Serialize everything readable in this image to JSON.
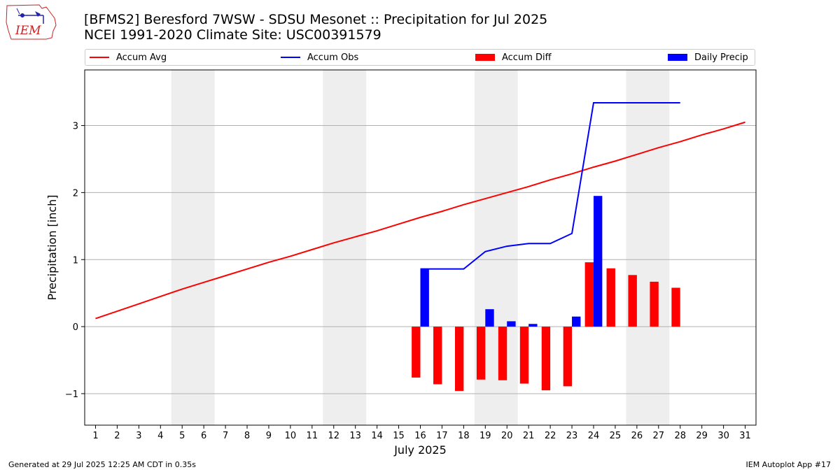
{
  "header": {
    "title": "[BFMS2] Beresford 7WSW - SDSU Mesonet :: Precipitation for Jul 2025",
    "subtitle": "NCEI 1991-2020 Climate Site: USC00391579",
    "logo_text": "IEM"
  },
  "legend": {
    "accum_avg": "Accum Avg",
    "accum_obs": "Accum Obs",
    "accum_diff": "Accum Diff",
    "daily_precip": "Daily Precip"
  },
  "footer": {
    "left": "Generated at 29 Jul 2025 12:25 AM CDT in 0.35s",
    "right": "IEM Autoplot App #17"
  },
  "colors": {
    "accum_avg": "#ff0000",
    "accum_obs": "#0000ff",
    "accum_diff": "#ff0000",
    "daily_precip": "#0000ff",
    "weekend_band": "#eeeeee",
    "grid": "#b0b0b0"
  },
  "chart_data": {
    "type": "bar",
    "xlabel": "July 2025",
    "ylabel": "Precipitation [inch]",
    "xlim": [
      0.5,
      31.5
    ],
    "ylim": [
      -1.47,
      3.83
    ],
    "yticks": [
      -1,
      0,
      1,
      2,
      3
    ],
    "ytick_labels": [
      "−1",
      "0",
      "1",
      "2",
      "3"
    ],
    "grid": "horizontal",
    "legend_position": "top",
    "days": [
      1,
      2,
      3,
      4,
      5,
      6,
      7,
      8,
      9,
      10,
      11,
      12,
      13,
      14,
      15,
      16,
      17,
      18,
      19,
      20,
      21,
      22,
      23,
      24,
      25,
      26,
      27,
      28,
      29,
      30,
      31
    ],
    "weekend_days": [
      5,
      6,
      12,
      13,
      19,
      20,
      26,
      27
    ],
    "series": [
      {
        "name": "Accum Avg",
        "kind": "line",
        "x": [
          1,
          2,
          3,
          4,
          5,
          6,
          7,
          8,
          9,
          10,
          11,
          12,
          13,
          14,
          15,
          16,
          17,
          18,
          19,
          20,
          21,
          22,
          23,
          24,
          25,
          26,
          27,
          28,
          29,
          30,
          31
        ],
        "values": [
          0.12,
          0.23,
          0.34,
          0.45,
          0.56,
          0.66,
          0.76,
          0.86,
          0.96,
          1.05,
          1.15,
          1.25,
          1.34,
          1.43,
          1.53,
          1.63,
          1.72,
          1.82,
          1.91,
          2.0,
          2.09,
          2.19,
          2.28,
          2.38,
          2.47,
          2.57,
          2.67,
          2.76,
          2.86,
          2.95,
          3.05
        ]
      },
      {
        "name": "Accum Obs",
        "kind": "line",
        "x": [
          16,
          17,
          18,
          19,
          20,
          21,
          22,
          23,
          24,
          25,
          26,
          27,
          28
        ],
        "values": [
          0.86,
          0.86,
          0.86,
          1.12,
          1.2,
          1.24,
          1.24,
          1.39,
          3.34,
          3.34,
          3.34,
          3.34,
          3.34
        ]
      },
      {
        "name": "Accum Diff",
        "kind": "bar",
        "x": [
          16,
          17,
          18,
          19,
          20,
          21,
          22,
          23,
          24,
          25,
          26,
          27,
          28
        ],
        "values": [
          -0.76,
          -0.86,
          -0.96,
          -0.79,
          -0.8,
          -0.85,
          -0.95,
          -0.89,
          0.96,
          0.87,
          0.77,
          0.67,
          0.58
        ]
      },
      {
        "name": "Daily Precip",
        "kind": "bar",
        "x": [
          16,
          19,
          20,
          21,
          23,
          24
        ],
        "values": [
          0.86,
          0.26,
          0.08,
          0.04,
          0.15,
          1.95
        ]
      }
    ]
  }
}
